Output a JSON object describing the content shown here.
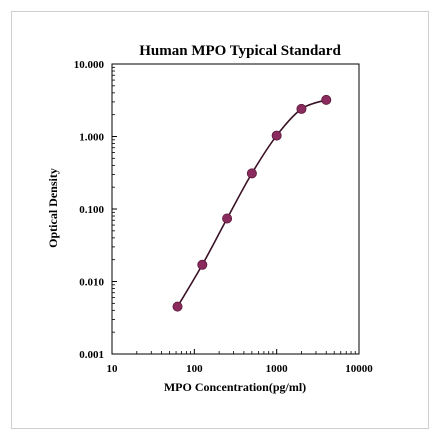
{
  "chart_data": {
    "type": "scatter",
    "title": "Human  MPO Typical Standard",
    "xlabel": "MPO Concentration(pg/ml)",
    "ylabel": "Optical Density",
    "x_scale": "log",
    "y_scale": "log",
    "xlim": [
      10,
      10000
    ],
    "ylim": [
      0.001,
      10
    ],
    "x_ticks": [
      "10",
      "100",
      "1000",
      "10000"
    ],
    "y_ticks": [
      "0.001",
      "0.010",
      "0.100",
      "1.000",
      "10.000"
    ],
    "grid": false,
    "legend": "none",
    "series": [
      {
        "x": [
          62.5,
          125,
          250,
          500,
          1000,
          2000,
          4000
        ],
        "y": [
          0.0045,
          0.017,
          0.074,
          0.31,
          1.03,
          2.4,
          3.2
        ],
        "marker_color": "#8b2a5c",
        "line_color": "#3a1226",
        "curve": "smooth"
      }
    ]
  }
}
